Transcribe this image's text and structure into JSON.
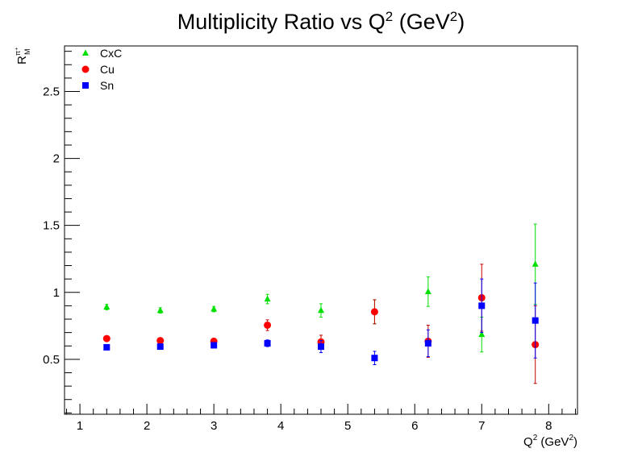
{
  "colors": {
    "background": "#ffffff",
    "axis": "#000000",
    "CxC": "#00e000",
    "Cu": "#ff0000",
    "Cu_error": "#cc0000",
    "Sn": "#0000ff"
  },
  "chart_data": {
    "type": "scatter",
    "title": {
      "pre": "Multiplicity Ratio vs Q",
      "sup1": "2",
      "mid": " (GeV",
      "sup2": "2",
      "post": ")"
    },
    "xlabel": {
      "main": "Q",
      "sup": "2",
      "unit": " (GeV",
      "unit_sup": "2",
      "close": ")"
    },
    "ylabel": {
      "main": "R",
      "sup": "π⁺",
      "sub": "M"
    },
    "xlim": [
      0.77,
      8.43
    ],
    "ylim": [
      0.09,
      2.84
    ],
    "xticks": [
      {
        "value": 1,
        "label": "1"
      },
      {
        "value": 2,
        "label": "2"
      },
      {
        "value": 3,
        "label": "3"
      },
      {
        "value": 4,
        "label": "4"
      },
      {
        "value": 5,
        "label": "5"
      },
      {
        "value": 6,
        "label": "6"
      },
      {
        "value": 7,
        "label": "7"
      },
      {
        "value": 8,
        "label": "8"
      }
    ],
    "yticks": [
      {
        "value": 0.5,
        "label": "0.5"
      },
      {
        "value": 1.0,
        "label": "1"
      },
      {
        "value": 1.5,
        "label": "1.5"
      },
      {
        "value": 2.0,
        "label": "2"
      },
      {
        "value": 2.5,
        "label": "2.5"
      }
    ],
    "grid": false,
    "legend_position": "top-left",
    "series": [
      {
        "name": "CxC",
        "marker": "triangle",
        "x": [
          1.4,
          2.2,
          3.0,
          3.8,
          4.6,
          5.4,
          6.2,
          7.0,
          7.8
        ],
        "y": [
          0.89,
          0.865,
          0.875,
          0.95,
          0.865,
          0.855,
          1.005,
          0.685,
          1.21
        ],
        "err": [
          0.02,
          0.02,
          0.02,
          0.035,
          0.05,
          0.09,
          0.11,
          0.13,
          0.3
        ]
      },
      {
        "name": "Cu",
        "marker": "circle",
        "x": [
          1.4,
          2.2,
          3.0,
          3.8,
          4.6,
          5.4,
          6.2,
          7.0,
          7.8
        ],
        "y": [
          0.655,
          0.64,
          0.635,
          0.755,
          0.63,
          0.855,
          0.635,
          0.96,
          0.61
        ],
        "err": [
          0.01,
          0.01,
          0.012,
          0.04,
          0.05,
          0.09,
          0.12,
          0.25,
          0.29
        ]
      },
      {
        "name": "Sn",
        "marker": "square",
        "x": [
          1.4,
          2.2,
          3.0,
          3.8,
          4.6,
          5.4,
          6.2,
          7.0,
          7.8
        ],
        "y": [
          0.59,
          0.595,
          0.605,
          0.62,
          0.595,
          0.51,
          0.62,
          0.9,
          0.79
        ],
        "err": [
          0.01,
          0.015,
          0.015,
          0.025,
          0.045,
          0.05,
          0.1,
          0.2,
          0.28
        ]
      }
    ]
  }
}
